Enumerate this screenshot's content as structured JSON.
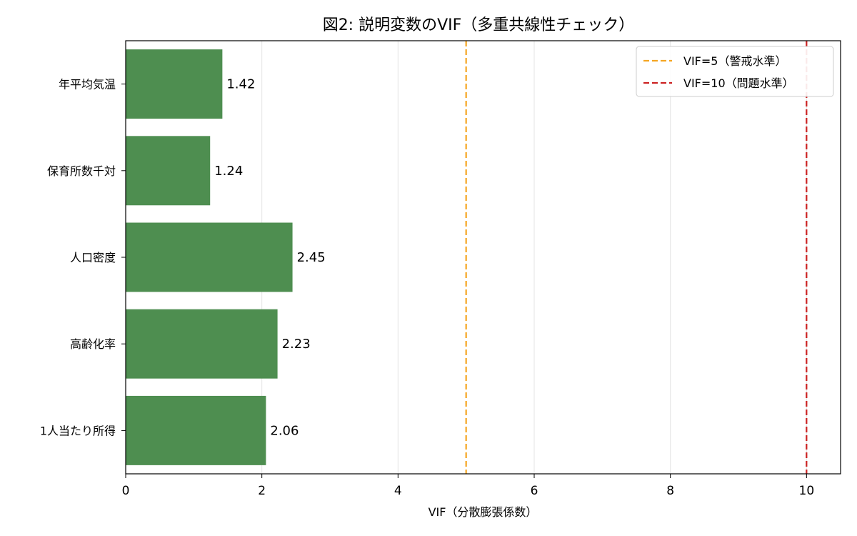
{
  "chart_data": {
    "type": "bar",
    "orientation": "horizontal",
    "title": "図2: 説明変数のVIF（多重共線性チェック）",
    "xlabel": "VIF（分散膨張係数）",
    "ylabel": "",
    "categories": [
      "年平均気温",
      "保育所数千対",
      "人口密度",
      "高齢化率",
      "1人当たり所得"
    ],
    "values": [
      1.42,
      1.24,
      2.45,
      2.23,
      2.06
    ],
    "data_labels": [
      "1.42",
      "1.24",
      "2.45",
      "2.23",
      "2.06"
    ],
    "xlim": [
      0,
      10.5
    ],
    "xticks": [
      0,
      2,
      4,
      6,
      8,
      10
    ],
    "xtick_labels": [
      "0",
      "2",
      "4",
      "6",
      "8",
      "10"
    ],
    "grid": "x",
    "bar_color": "#4e8e50",
    "reference_lines": [
      {
        "value": 5,
        "label": "VIF=5（警戒水準）",
        "color": "#f5a623",
        "style": "dashed"
      },
      {
        "value": 10,
        "label": "VIF=10（問題水準）",
        "color": "#cc2222",
        "style": "dashed"
      }
    ],
    "legend": {
      "position": "top-right"
    }
  }
}
